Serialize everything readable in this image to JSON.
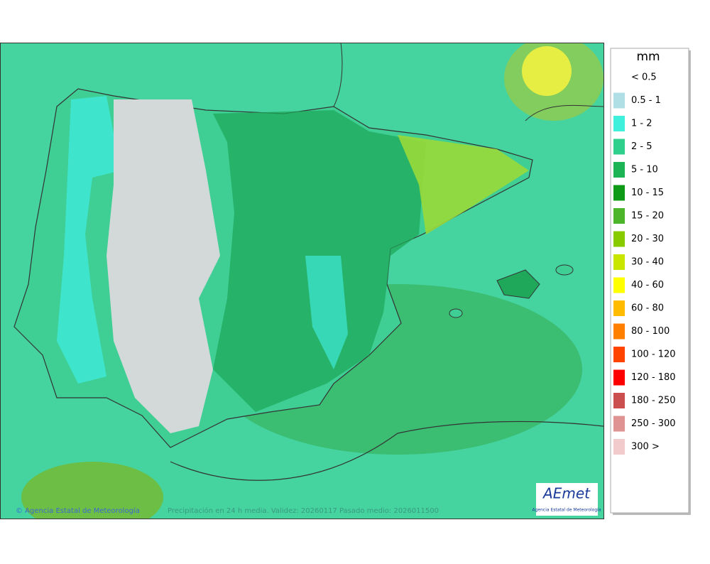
{
  "map": {
    "credit": "© Agencia Estatal de Meteorología",
    "caption": "Precipitación en 24 h media. Validez: 20260117 Pasado medio: 2026011500",
    "logo": {
      "name": "AEmet",
      "subtitle": "Agencia Estatal de Meteorología"
    }
  },
  "legend": {
    "title": "mm",
    "items": [
      {
        "label": "< 0.5"
      },
      {
        "label": "0.5 - 1",
        "color": "#b0e0e6"
      },
      {
        "label": "1 - 2",
        "color": "#3ff0dc"
      },
      {
        "label": "2 - 5",
        "color": "#2fd08c"
      },
      {
        "label": "5 - 10",
        "color": "#1db455"
      },
      {
        "label": "10 - 15",
        "color": "#0e9a17"
      },
      {
        "label": "15 - 20",
        "color": "#4cb52a"
      },
      {
        "label": "20 - 30",
        "color": "#88cc00"
      },
      {
        "label": "30 - 40",
        "color": "#c8e600"
      },
      {
        "label": "40 - 60",
        "color": "#ffff00"
      },
      {
        "label": "60 - 80",
        "color": "#ffbb00"
      },
      {
        "label": "80 - 100",
        "color": "#ff7f00"
      },
      {
        "label": "100 - 120",
        "color": "#ff4400"
      },
      {
        "label": "120 - 180",
        "color": "#ff0000"
      },
      {
        "label": "180 - 250",
        "color": "#cc4f4f"
      },
      {
        "label": "250 - 300",
        "color": "#e09393"
      },
      {
        "label": "300 >",
        "color": "#f2cccc"
      }
    ]
  }
}
